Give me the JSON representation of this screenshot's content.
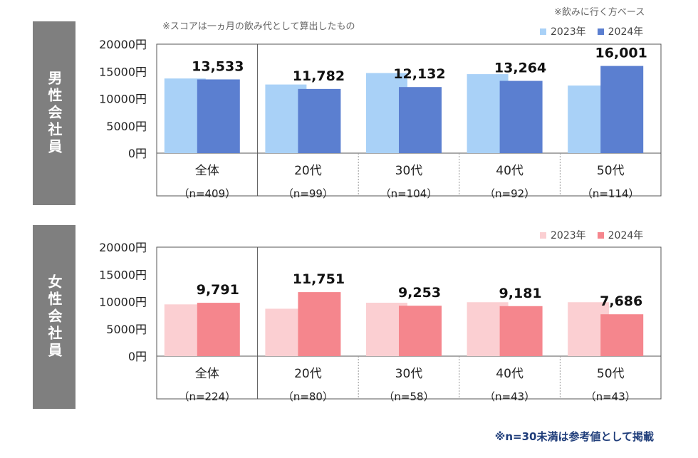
{
  "notes": {
    "score_note": "※スコアは一ヵ月の飲み代として算出したもの",
    "base_note": "※飲みに行く方ベース",
    "footer": "※n=30未満は参考値として掲載"
  },
  "colors": {
    "male_2023": "#a9d1f7",
    "male_2024": "#5b7fd0",
    "female_2023": "#fbcfd2",
    "female_2024": "#f5868d",
    "side_bg": "#7f7f7f"
  },
  "chart_data": [
    {
      "type": "bar",
      "panel_label": "男性会社員",
      "categories": [
        "全体",
        "20代",
        "30代",
        "40代",
        "50代"
      ],
      "sample_sizes": [
        "（n=409）",
        "（n=99）",
        "（n=104）",
        "（n=92）",
        "（n=114）"
      ],
      "series": [
        {
          "name": "2023年",
          "values": [
            13700,
            12600,
            14700,
            14500,
            12400
          ]
        },
        {
          "name": "2024年",
          "values": [
            13533,
            11782,
            12132,
            13264,
            16001
          ]
        }
      ],
      "data_labels": [
        "13,533",
        "11,782",
        "12,132",
        "13,264",
        "16,001"
      ],
      "y_ticks": [
        "0円",
        "5000円",
        "10000円",
        "15000円",
        "20000円"
      ],
      "ylim": [
        0,
        20000
      ],
      "legend_position": "top-right"
    },
    {
      "type": "bar",
      "panel_label": "女性会社員",
      "categories": [
        "全体",
        "20代",
        "30代",
        "40代",
        "50代"
      ],
      "sample_sizes": [
        "（n=224）",
        "（n=80）",
        "（n=58）",
        "（n=43）",
        "（n=43）"
      ],
      "series": [
        {
          "name": "2023年",
          "values": [
            9500,
            8700,
            9800,
            9900,
            9900
          ]
        },
        {
          "name": "2024年",
          "values": [
            9791,
            11751,
            9253,
            9181,
            7686
          ]
        }
      ],
      "data_labels": [
        "9,791",
        "11,751",
        "9,253",
        "9,181",
        "7,686"
      ],
      "y_ticks": [
        "0円",
        "5000円",
        "10000円",
        "15000円",
        "20000円"
      ],
      "ylim": [
        0,
        20000
      ],
      "legend_position": "top-right"
    }
  ]
}
